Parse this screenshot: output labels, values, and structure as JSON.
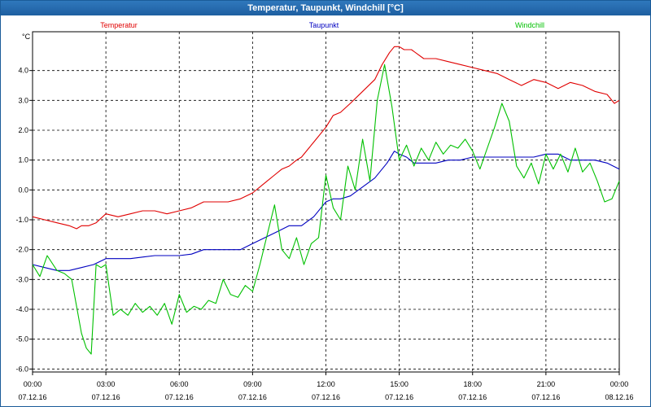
{
  "window": {
    "title": "Temperatur, Taupunkt, Windchill [°C]"
  },
  "chart_data": {
    "type": "line",
    "title": "Temperatur, Taupunkt, Windchill [°C]",
    "ylabel": "°C",
    "ylim": [
      -6.1,
      5.3
    ],
    "yticks": [
      -6,
      -5,
      -4,
      -3,
      -2,
      -1,
      0,
      1,
      2,
      3,
      4
    ],
    "ytick_labels": [
      "-6.0",
      "-5.0",
      "-4.0",
      "-3.0",
      "-2.0",
      "-1.0",
      "0.0",
      "1.0",
      "2.0",
      "3.0",
      "4.0"
    ],
    "xlim": [
      0,
      24
    ],
    "xticks": [
      0,
      3,
      6,
      9,
      12,
      15,
      18,
      21,
      24
    ],
    "xtick_labels": [
      [
        "00:00",
        "07.12.16"
      ],
      [
        "03:00",
        "07.12.16"
      ],
      [
        "06:00",
        "07.12.16"
      ],
      [
        "09:00",
        "07.12.16"
      ],
      [
        "12:00",
        "07.12.16"
      ],
      [
        "15:00",
        "07.12.16"
      ],
      [
        "18:00",
        "07.12.16"
      ],
      [
        "21:00",
        "07.12.16"
      ],
      [
        "00:00",
        "08.12.16"
      ]
    ],
    "grid": true,
    "legend_placement": "top",
    "series": [
      {
        "name": "Temperatur",
        "color": "#e00000",
        "x": [
          0,
          0.5,
          1,
          1.5,
          1.8,
          2,
          2.3,
          2.6,
          3,
          3.5,
          4,
          4.5,
          5,
          5.5,
          6,
          6.5,
          7,
          7.5,
          8,
          8.5,
          9,
          9.3,
          9.6,
          9.9,
          10.2,
          10.5,
          10.8,
          11,
          11.3,
          11.6,
          12,
          12.3,
          12.6,
          13,
          13.5,
          14,
          14.3,
          14.6,
          14.8,
          15,
          15.2,
          15.5,
          16,
          16.5,
          17,
          17.5,
          18,
          18.5,
          19,
          19.5,
          20,
          20.5,
          21,
          21.5,
          22,
          22.5,
          23,
          23.5,
          23.8,
          24
        ],
        "y": [
          -0.9,
          -1.0,
          -1.1,
          -1.2,
          -1.3,
          -1.2,
          -1.2,
          -1.1,
          -0.8,
          -0.9,
          -0.8,
          -0.7,
          -0.7,
          -0.8,
          -0.7,
          -0.6,
          -0.4,
          -0.4,
          -0.4,
          -0.3,
          -0.1,
          0.1,
          0.3,
          0.5,
          0.7,
          0.8,
          1.0,
          1.1,
          1.4,
          1.7,
          2.1,
          2.5,
          2.6,
          2.9,
          3.3,
          3.7,
          4.2,
          4.6,
          4.8,
          4.8,
          4.7,
          4.7,
          4.4,
          4.4,
          4.3,
          4.2,
          4.1,
          4.0,
          3.9,
          3.7,
          3.5,
          3.7,
          3.6,
          3.4,
          3.6,
          3.5,
          3.3,
          3.2,
          2.9,
          3.0
        ]
      },
      {
        "name": "Taupunkt",
        "color": "#0000c0",
        "x": [
          0,
          0.5,
          1,
          1.5,
          2,
          2.5,
          3,
          3.5,
          4,
          4.5,
          5,
          5.5,
          6,
          6.5,
          7,
          7.5,
          8,
          8.5,
          9,
          9.5,
          10,
          10.5,
          11,
          11.5,
          12,
          12.3,
          12.6,
          13,
          13.5,
          14,
          14.5,
          14.8,
          15,
          15.3,
          15.6,
          16,
          16.5,
          17,
          17.5,
          18,
          18.5,
          19,
          19.5,
          20,
          20.5,
          21,
          21.5,
          22,
          22.5,
          23,
          23.5,
          24
        ],
        "y": [
          -2.5,
          -2.6,
          -2.7,
          -2.7,
          -2.6,
          -2.5,
          -2.3,
          -2.3,
          -2.3,
          -2.25,
          -2.2,
          -2.2,
          -2.2,
          -2.15,
          -2.0,
          -2.0,
          -2.0,
          -2.0,
          -1.8,
          -1.6,
          -1.4,
          -1.2,
          -1.2,
          -0.9,
          -0.4,
          -0.3,
          -0.3,
          -0.2,
          0.1,
          0.4,
          0.9,
          1.3,
          1.2,
          1.1,
          0.9,
          0.9,
          0.9,
          1.0,
          1.0,
          1.1,
          1.1,
          1.1,
          1.1,
          1.1,
          1.1,
          1.2,
          1.2,
          1.0,
          1.0,
          1.0,
          0.9,
          0.7
        ]
      },
      {
        "name": "Windchill",
        "color": "#00c000",
        "x": [
          0,
          0.3,
          0.6,
          1,
          1.3,
          1.6,
          2,
          2.2,
          2.4,
          2.6,
          2.8,
          3,
          3.3,
          3.6,
          3.9,
          4.2,
          4.5,
          4.8,
          5.1,
          5.4,
          5.7,
          6,
          6.3,
          6.6,
          6.9,
          7.2,
          7.5,
          7.8,
          8.1,
          8.4,
          8.7,
          9,
          9.3,
          9.6,
          9.9,
          10.2,
          10.5,
          10.8,
          11.1,
          11.4,
          11.7,
          12,
          12.3,
          12.6,
          12.9,
          13.2,
          13.5,
          13.8,
          14.1,
          14.4,
          14.7,
          15,
          15.3,
          15.6,
          15.9,
          16.2,
          16.5,
          16.8,
          17.1,
          17.4,
          17.7,
          18,
          18.3,
          18.6,
          18.9,
          19.2,
          19.5,
          19.8,
          20.1,
          20.4,
          20.7,
          21,
          21.3,
          21.6,
          21.9,
          22.2,
          22.5,
          22.8,
          23.1,
          23.4,
          23.7,
          24
        ],
        "y": [
          -2.5,
          -2.9,
          -2.2,
          -2.7,
          -2.8,
          -3.0,
          -4.8,
          -5.3,
          -5.5,
          -2.5,
          -2.6,
          -2.5,
          -4.2,
          -4.0,
          -4.2,
          -3.8,
          -4.1,
          -3.9,
          -4.2,
          -3.8,
          -4.5,
          -3.5,
          -4.1,
          -3.9,
          -4.0,
          -3.7,
          -3.8,
          -3.0,
          -3.5,
          -3.6,
          -3.2,
          -3.4,
          -2.5,
          -1.5,
          -0.5,
          -2.0,
          -2.3,
          -1.6,
          -2.5,
          -1.8,
          -1.6,
          0.5,
          -0.6,
          -1.0,
          0.8,
          0.0,
          1.7,
          0.3,
          3.0,
          4.2,
          2.8,
          1.0,
          1.5,
          0.8,
          1.4,
          1.0,
          1.6,
          1.2,
          1.5,
          1.4,
          1.7,
          1.3,
          0.7,
          1.4,
          2.1,
          2.9,
          2.3,
          0.8,
          0.4,
          0.9,
          0.2,
          1.2,
          0.7,
          1.2,
          0.6,
          1.4,
          0.6,
          0.9,
          0.3,
          -0.4,
          -0.3,
          0.3
        ]
      }
    ]
  }
}
